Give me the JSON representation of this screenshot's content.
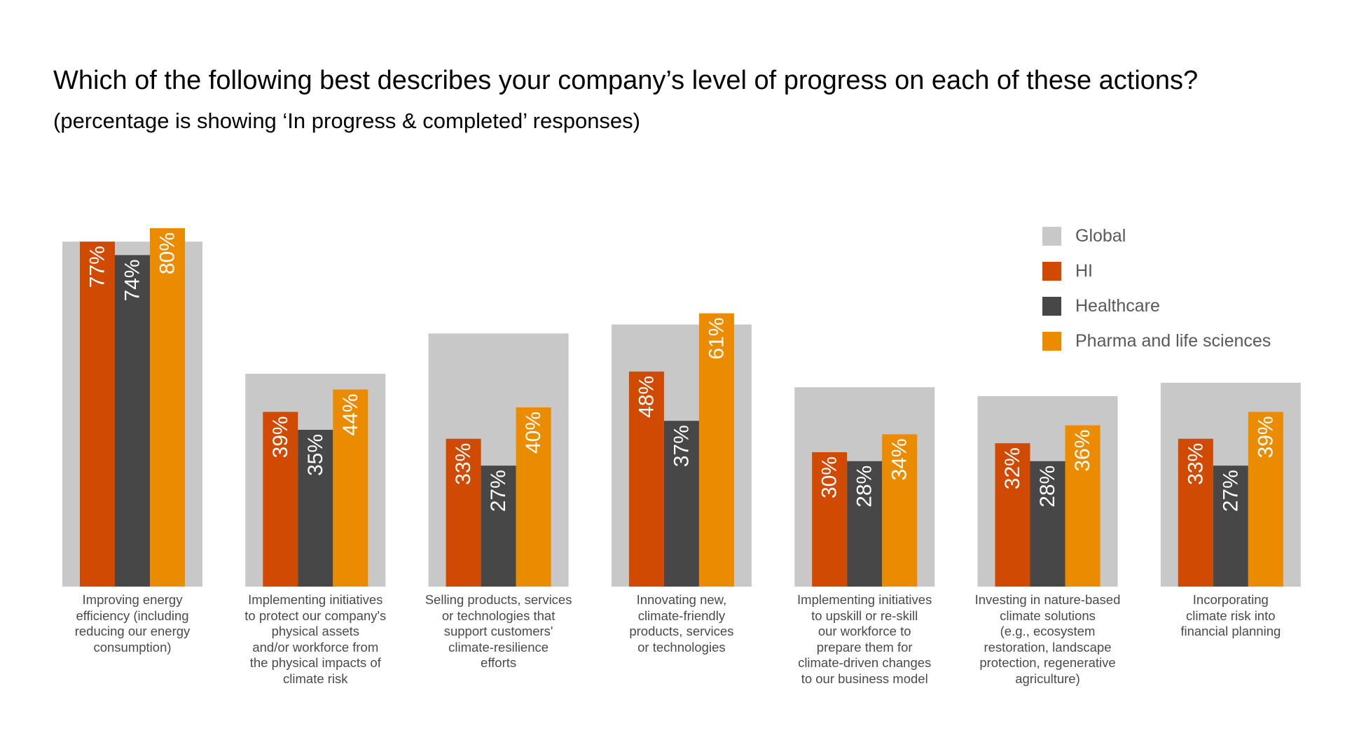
{
  "title": "Which of the following best describes your company’s level of progress on each of these actions?",
  "subtitle": "(percentage is showing ‘In progress & completed’ responses)",
  "colors": {
    "Global": "#c8c8c8",
    "HI": "#d04a02",
    "Healthcare": "#474747",
    "Pharma and life sciences": "#eb8c00",
    "axis_text": "#4a4a4a",
    "legend_text": "#595959"
  },
  "chart_data": {
    "type": "bar",
    "title": "Which of the following best describes your company’s level of progress on each of these actions?",
    "subtitle": "(percentage is showing ‘In progress & completed’ responses)",
    "categories": [
      "Improving energy efficiency (including reducing our energy consumption)",
      "Implementing initiatives to protect our company's physical assets and/or workforce from the physical impacts of climate risk",
      "Selling products, services or technologies that support customers' climate-resilience efforts",
      "Innovating new, climate-friendly products, services or technologies",
      "Implementing initiatives to upskill or re-skill our workforce to prepare them for climate-driven changes to our business model",
      "Investing in nature-based climate solutions (e.g., ecosystem restoration, landscape protection, regenerative agriculture)",
      "Incorporating climate risk into financial planning"
    ],
    "category_lines": [
      [
        "Improving energy",
        "efficiency (including",
        "reducing our energy",
        "consumption)"
      ],
      [
        "Implementing initiatives",
        "to protect our company's",
        "physical assets",
        "and/or workforce from",
        "the physical impacts of",
        "climate risk"
      ],
      [
        "Selling products, services",
        "or technologies that",
        "support customers'",
        "climate-resilience",
        "efforts"
      ],
      [
        "Innovating new,",
        "climate-friendly",
        "products, services",
        "or technologies"
      ],
      [
        "Implementing initiatives",
        "to upskill or re-skill",
        "our workforce to",
        "prepare them for",
        "climate-driven changes",
        "to our business model"
      ],
      [
        "Investing in nature-based",
        "climate solutions",
        "(e.g., ecosystem",
        "restoration, landscape",
        "protection, regenerative",
        "agriculture)"
      ],
      [
        "Incorporating",
        "climate risk into",
        "financial planning"
      ]
    ],
    "global": {
      "name": "Global",
      "values": [
        77,
        47.5,
        56.5,
        58.5,
        44.5,
        42.5,
        45.5
      ]
    },
    "series": [
      {
        "name": "HI",
        "values": [
          77,
          39,
          33,
          48,
          30,
          32,
          33
        ]
      },
      {
        "name": "Healthcare",
        "values": [
          74,
          35,
          27,
          37,
          28,
          28,
          27
        ]
      },
      {
        "name": "Pharma and life sciences",
        "values": [
          80,
          44,
          40,
          61,
          34,
          36,
          39
        ]
      }
    ],
    "data_labels": [
      [
        "77%",
        "74%",
        "80%"
      ],
      [
        "39%",
        "35%",
        "44%"
      ],
      [
        "33%",
        "27%",
        "40%"
      ],
      [
        "48%",
        "37%",
        "61%"
      ],
      [
        "30%",
        "28%",
        "34%"
      ],
      [
        "32%",
        "28%",
        "36%"
      ],
      [
        "33%",
        "27%",
        "39%"
      ]
    ],
    "ylim": [
      0,
      100
    ],
    "grid": false,
    "legend_position": "top-right"
  },
  "legend": {
    "items": [
      "Global",
      "HI",
      "Healthcare",
      "Pharma and life sciences"
    ]
  }
}
